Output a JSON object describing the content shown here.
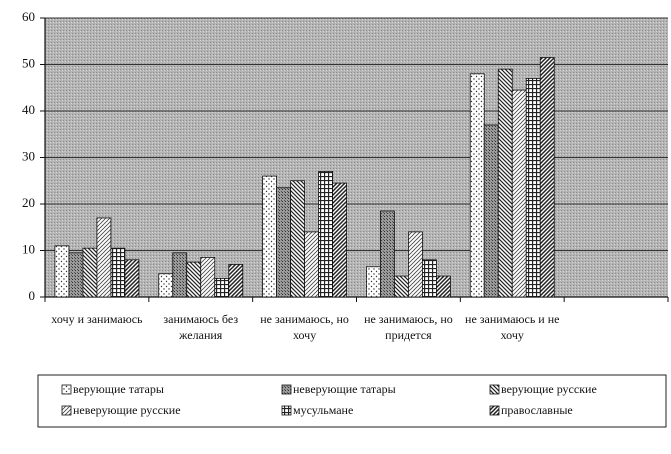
{
  "chart_data": {
    "type": "bar",
    "categories": [
      "хочу и занимаюсь",
      "занимаюсь без желания",
      "не занимаюсь, но хочу",
      "не занимаюсь, но придется",
      "не занимаюсь и не хочу",
      null
    ],
    "series": [
      {
        "name": "верующие татары",
        "color": "#ffffff",
        "values": [
          11,
          5,
          26,
          6.5,
          48,
          null
        ]
      },
      {
        "name": "неверующие татары",
        "color": "#8a8a8a",
        "values": [
          9.5,
          9.5,
          23.5,
          18.5,
          37,
          null
        ]
      },
      {
        "name": "верующие русские",
        "color": "#d0d0d0",
        "values": [
          10.5,
          7.5,
          25,
          4.5,
          49,
          null
        ]
      },
      {
        "name": "неверующие русские",
        "color": "#f4f4f4",
        "values": [
          17,
          8.5,
          14,
          14,
          44.5,
          null
        ]
      },
      {
        "name": "мусульмане",
        "color": "#bdbdbd",
        "values": [
          10.5,
          4,
          27,
          8,
          47,
          null
        ]
      },
      {
        "name": "православные",
        "color": "#dcdcdc",
        "values": [
          8,
          7,
          24.5,
          4.5,
          51.5,
          null
        ]
      }
    ],
    "ylim": [
      0,
      60
    ],
    "yticks": [
      0,
      10,
      20,
      30,
      40,
      50,
      60
    ],
    "grid": true
  }
}
